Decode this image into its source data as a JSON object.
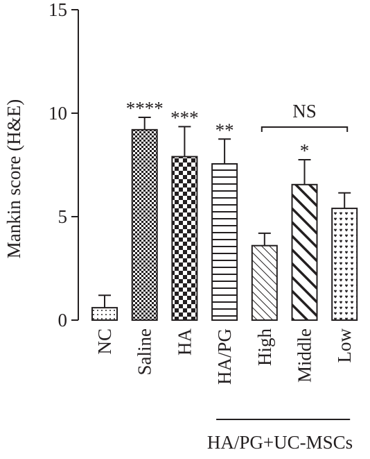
{
  "chart_data": {
    "type": "bar",
    "ylabel": "Mankin score (H&E)",
    "ylim": [
      0,
      15
    ],
    "yticks": [
      0,
      5,
      10,
      15
    ],
    "grid": false,
    "categories": [
      "NC",
      "Saline",
      "HA",
      "HA/PG",
      "High",
      "Middle",
      "Low"
    ],
    "values": [
      0.6,
      9.2,
      7.9,
      7.55,
      3.6,
      6.55,
      5.4
    ],
    "errors": [
      0.6,
      0.6,
      1.45,
      1.2,
      0.6,
      1.2,
      0.75
    ],
    "significance": [
      "",
      "****",
      "***",
      "**",
      "",
      "*",
      ""
    ],
    "bar_patterns": [
      "dots",
      "checker-fine",
      "checker-coarse",
      "horizontal-lines",
      "diagonal-thin",
      "diagonal-thick",
      "hearts"
    ],
    "bracket": {
      "label": "NS",
      "from": "High",
      "to": "Low"
    },
    "group": {
      "label": "HA/PG+UC-MSCs",
      "from": "HA/PG",
      "to": "Low"
    }
  }
}
